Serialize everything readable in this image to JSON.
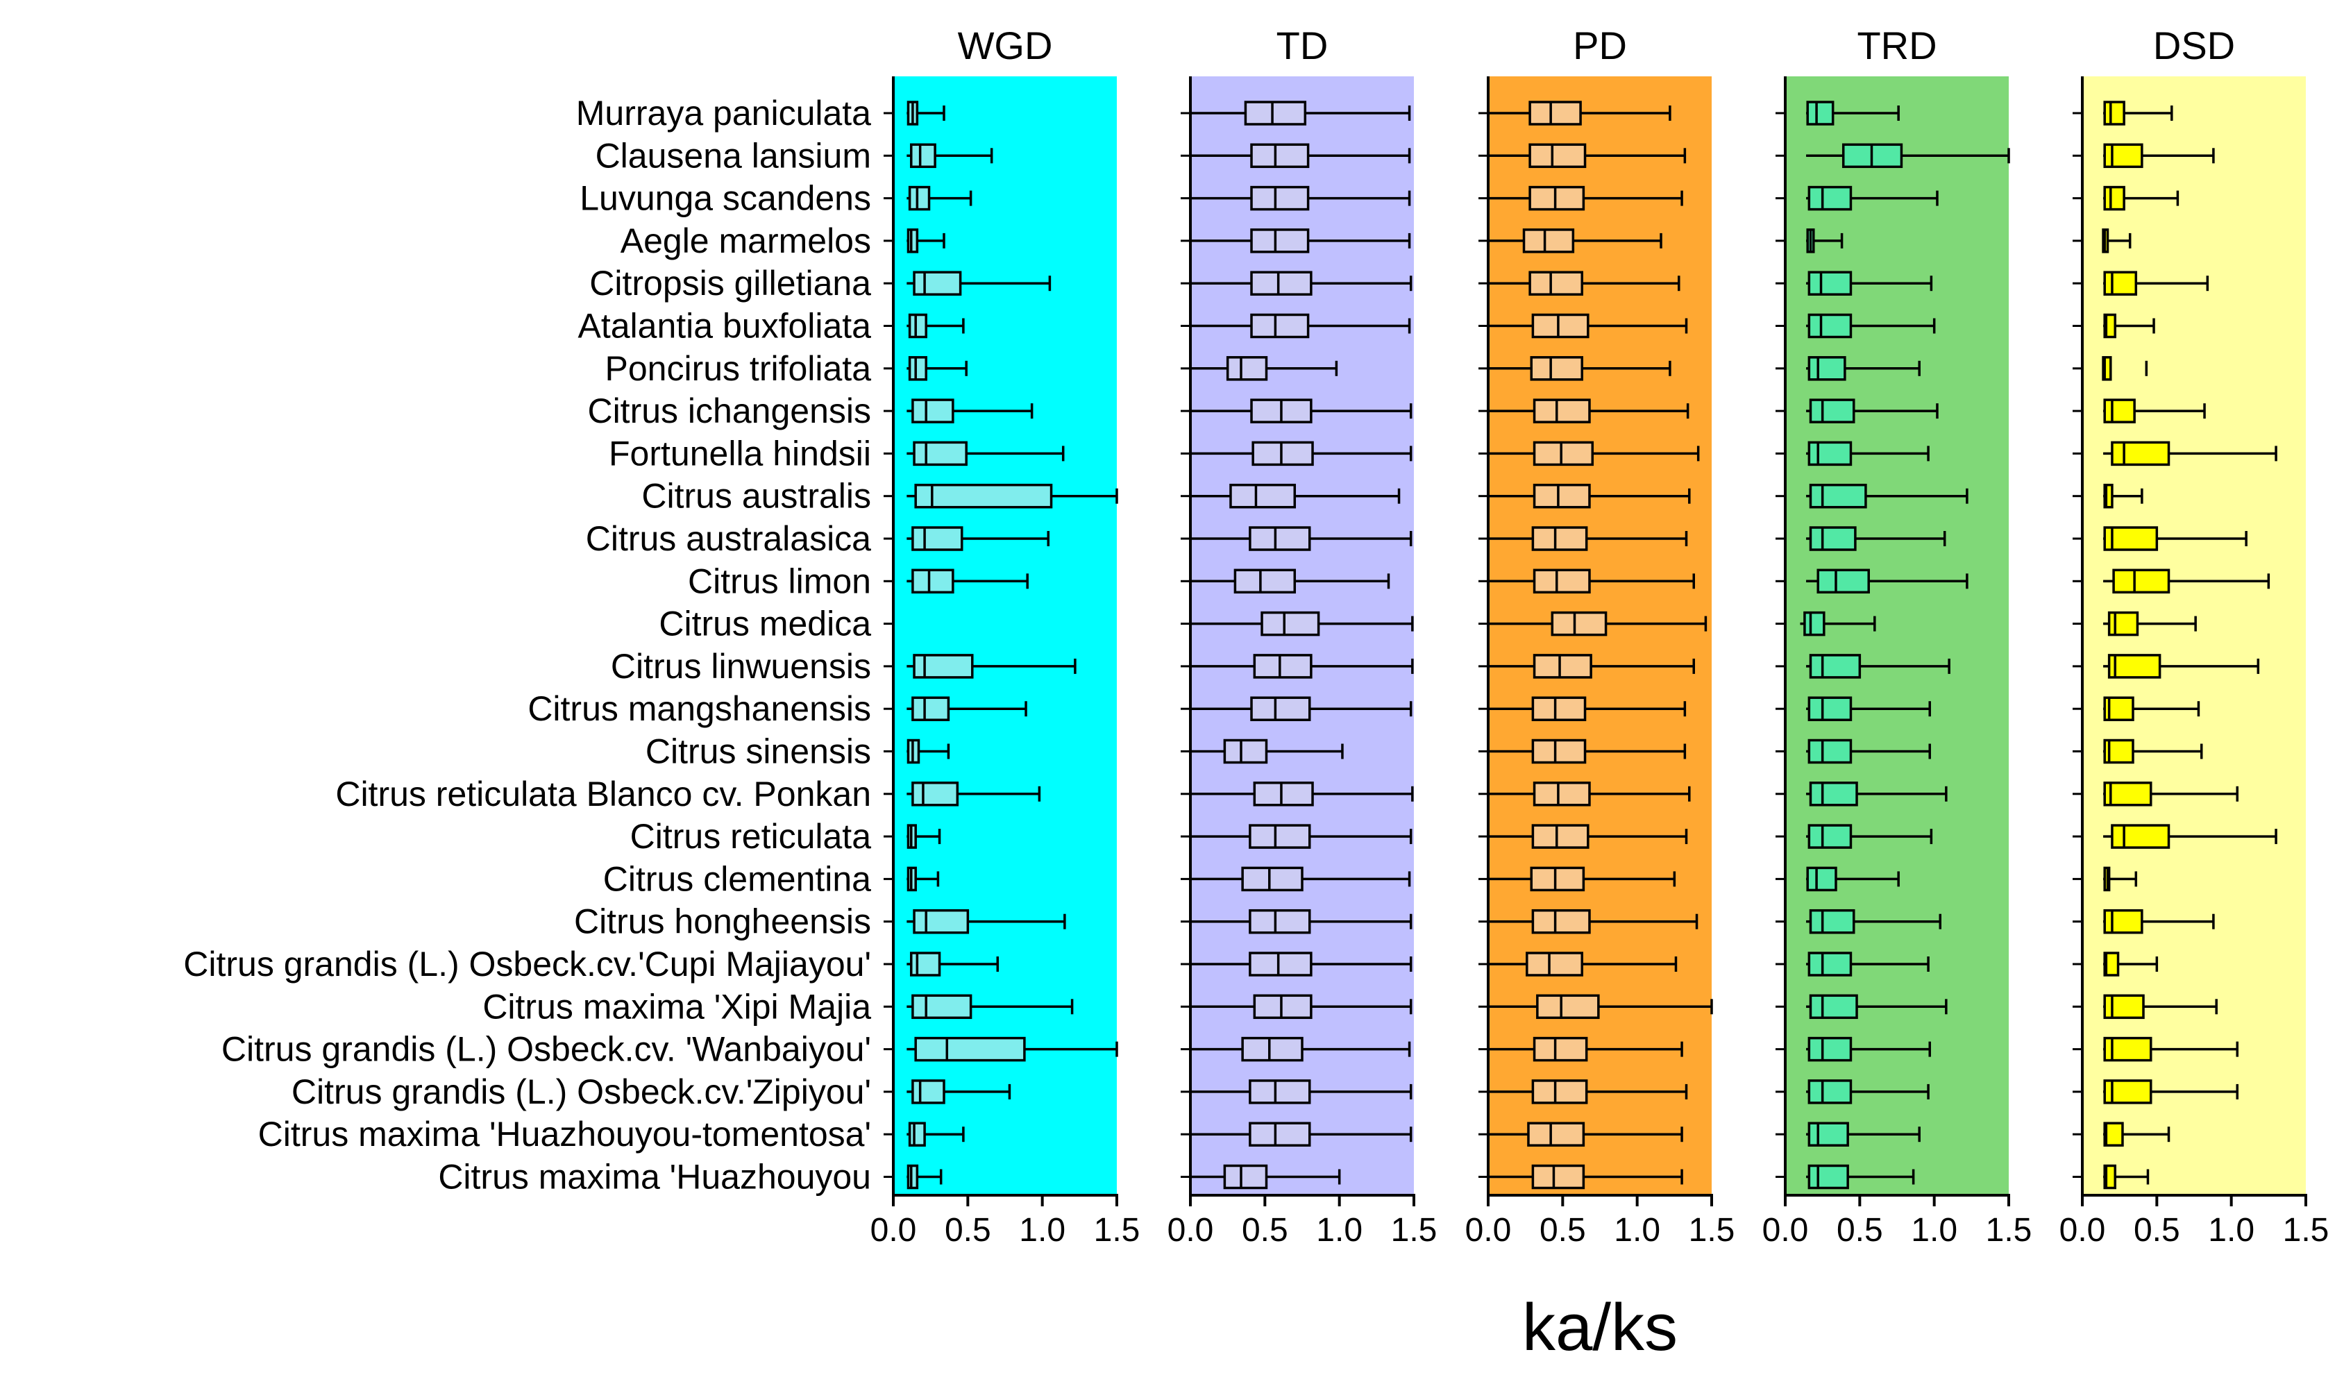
{
  "chart_data": {
    "type": "box",
    "xlabel": "ka/ks",
    "xlim": [
      0,
      1.5
    ],
    "xticks": [
      "0.0",
      "0.5",
      "1.0",
      "1.5"
    ],
    "categories": [
      "Murraya paniculata",
      "Clausena lansium",
      "Luvunga scandens",
      "Aegle marmelos",
      "Citropsis gilletiana",
      "Atalantia buxfoliata",
      "Poncirus trifoliata",
      "Citrus ichangensis",
      "Fortunella hindsii",
      "Citrus australis",
      "Citrus australasica",
      "Citrus limon",
      "Citrus medica",
      "Citrus linwuensis",
      "Citrus mangshanensis",
      "Citrus sinensis",
      "Citrus reticulata Blanco cv. Ponkan",
      "Citrus reticulata",
      "Citrus clementina",
      "Citrus hongheensis",
      "Citrus grandis (L.) Osbeck.cv.'Cupi Majiayou'",
      "Citrus maxima 'Xipi Majia",
      "Citrus grandis (L.) Osbeck.cv. 'Wanbaiyou'",
      "Citrus grandis (L.) Osbeck.cv.'Zipiyou'",
      "Citrus maxima 'Huazhouyou-tomentosa'",
      "Citrus maxima 'Huazhouyou"
    ],
    "panels": [
      {
        "name": "WGD",
        "background": "#00ffff",
        "box_fill": "#80eded",
        "boxes": [
          [
            0.09,
            0.1,
            0.13,
            0.16,
            0.34
          ],
          [
            0.09,
            0.12,
            0.18,
            0.28,
            0.66
          ],
          [
            0.09,
            0.11,
            0.16,
            0.24,
            0.52
          ],
          [
            0.09,
            0.1,
            0.12,
            0.16,
            0.34
          ],
          [
            0.09,
            0.14,
            0.21,
            0.45,
            1.05
          ],
          [
            0.09,
            0.11,
            0.15,
            0.22,
            0.47
          ],
          [
            0.09,
            0.11,
            0.15,
            0.22,
            0.49
          ],
          [
            0.09,
            0.13,
            0.22,
            0.4,
            0.93
          ],
          [
            0.09,
            0.14,
            0.22,
            0.49,
            1.14
          ],
          [
            0.09,
            0.15,
            0.26,
            1.06,
            1.5
          ],
          [
            0.09,
            0.13,
            0.21,
            0.46,
            1.04
          ],
          [
            0.09,
            0.13,
            0.24,
            0.4,
            0.9
          ],
          null,
          [
            0.09,
            0.14,
            0.21,
            0.53,
            1.22
          ],
          [
            0.09,
            0.13,
            0.21,
            0.37,
            0.89
          ],
          [
            0.09,
            0.1,
            0.13,
            0.17,
            0.37
          ],
          [
            0.09,
            0.13,
            0.2,
            0.43,
            0.98
          ],
          [
            0.09,
            0.1,
            0.12,
            0.15,
            0.31
          ],
          [
            0.09,
            0.1,
            0.12,
            0.15,
            0.3
          ],
          [
            0.09,
            0.14,
            0.22,
            0.5,
            1.15
          ],
          [
            0.09,
            0.12,
            0.16,
            0.31,
            0.7
          ],
          [
            0.09,
            0.13,
            0.22,
            0.52,
            1.2
          ],
          [
            0.09,
            0.15,
            0.36,
            0.88,
            1.5
          ],
          [
            0.09,
            0.13,
            0.18,
            0.34,
            0.78
          ],
          [
            0.09,
            0.11,
            0.14,
            0.21,
            0.47
          ],
          [
            0.09,
            0.1,
            0.12,
            0.16,
            0.32
          ]
        ]
      },
      {
        "name": "TD",
        "background": "#c0c0ff",
        "box_fill": "#ccccf4",
        "boxes": [
          [
            0.0,
            0.37,
            0.55,
            0.77,
            1.47
          ],
          [
            0.0,
            0.41,
            0.57,
            0.79,
            1.47
          ],
          [
            0.0,
            0.41,
            0.57,
            0.79,
            1.47
          ],
          [
            0.0,
            0.41,
            0.57,
            0.79,
            1.47
          ],
          [
            0.0,
            0.41,
            0.59,
            0.81,
            1.48
          ],
          [
            0.0,
            0.41,
            0.57,
            0.79,
            1.47
          ],
          [
            0.0,
            0.25,
            0.34,
            0.51,
            0.98
          ],
          [
            0.0,
            0.41,
            0.61,
            0.81,
            1.48
          ],
          [
            0.0,
            0.42,
            0.61,
            0.82,
            1.48
          ],
          [
            0.0,
            0.27,
            0.44,
            0.7,
            1.4
          ],
          [
            0.0,
            0.4,
            0.57,
            0.8,
            1.48
          ],
          [
            0.0,
            0.3,
            0.47,
            0.7,
            1.33
          ],
          [
            0.0,
            0.48,
            0.63,
            0.86,
            1.49
          ],
          [
            0.0,
            0.43,
            0.6,
            0.81,
            1.49
          ],
          [
            0.0,
            0.41,
            0.57,
            0.8,
            1.48
          ],
          [
            0.0,
            0.23,
            0.34,
            0.51,
            1.02
          ],
          [
            0.0,
            0.43,
            0.61,
            0.82,
            1.49
          ],
          [
            0.0,
            0.4,
            0.57,
            0.8,
            1.48
          ],
          [
            0.0,
            0.35,
            0.53,
            0.75,
            1.47
          ],
          [
            0.0,
            0.4,
            0.57,
            0.8,
            1.48
          ],
          [
            0.0,
            0.4,
            0.59,
            0.81,
            1.48
          ],
          [
            0.0,
            0.43,
            0.61,
            0.81,
            1.48
          ],
          [
            0.0,
            0.35,
            0.53,
            0.75,
            1.47
          ],
          [
            0.0,
            0.4,
            0.57,
            0.8,
            1.48
          ],
          [
            0.0,
            0.4,
            0.57,
            0.8,
            1.48
          ],
          [
            0.0,
            0.23,
            0.34,
            0.51,
            1.0
          ]
        ]
      },
      {
        "name": "PD",
        "background": "#ffa832",
        "box_fill": "#f9c88e",
        "boxes": [
          [
            0.0,
            0.28,
            0.42,
            0.62,
            1.22
          ],
          [
            0.0,
            0.28,
            0.43,
            0.65,
            1.32
          ],
          [
            0.0,
            0.28,
            0.45,
            0.64,
            1.3
          ],
          [
            0.0,
            0.24,
            0.38,
            0.57,
            1.16
          ],
          [
            0.0,
            0.28,
            0.42,
            0.63,
            1.28
          ],
          [
            0.0,
            0.3,
            0.47,
            0.67,
            1.33
          ],
          [
            0.0,
            0.29,
            0.42,
            0.63,
            1.22
          ],
          [
            0.0,
            0.31,
            0.46,
            0.68,
            1.34
          ],
          [
            0.0,
            0.31,
            0.49,
            0.7,
            1.41
          ],
          [
            0.0,
            0.31,
            0.47,
            0.68,
            1.35
          ],
          [
            0.0,
            0.3,
            0.45,
            0.66,
            1.33
          ],
          [
            0.0,
            0.31,
            0.46,
            0.68,
            1.38
          ],
          [
            0.0,
            0.43,
            0.58,
            0.79,
            1.46
          ],
          [
            0.0,
            0.31,
            0.48,
            0.69,
            1.38
          ],
          [
            0.0,
            0.3,
            0.45,
            0.65,
            1.32
          ],
          [
            0.0,
            0.3,
            0.45,
            0.65,
            1.32
          ],
          [
            0.0,
            0.31,
            0.47,
            0.68,
            1.35
          ],
          [
            0.0,
            0.3,
            0.46,
            0.67,
            1.33
          ],
          [
            0.0,
            0.29,
            0.45,
            0.64,
            1.25
          ],
          [
            0.0,
            0.3,
            0.45,
            0.68,
            1.4
          ],
          [
            0.0,
            0.26,
            0.41,
            0.63,
            1.26
          ],
          [
            0.0,
            0.33,
            0.49,
            0.74,
            1.5
          ],
          [
            0.0,
            0.31,
            0.45,
            0.66,
            1.3
          ],
          [
            0.0,
            0.3,
            0.45,
            0.66,
            1.33
          ],
          [
            0.0,
            0.27,
            0.42,
            0.64,
            1.3
          ],
          [
            0.0,
            0.3,
            0.44,
            0.64,
            1.3
          ]
        ]
      },
      {
        "name": "TRD",
        "background": "#80d878",
        "box_fill": "#52e8a5",
        "boxes": [
          [
            0.14,
            0.15,
            0.21,
            0.32,
            0.76
          ],
          [
            0.14,
            0.39,
            0.58,
            0.78,
            1.5
          ],
          [
            0.14,
            0.16,
            0.25,
            0.44,
            1.02
          ],
          [
            0.14,
            0.15,
            0.17,
            0.19,
            0.38
          ],
          [
            0.14,
            0.16,
            0.24,
            0.44,
            0.98
          ],
          [
            0.14,
            0.16,
            0.24,
            0.44,
            1.0
          ],
          [
            0.14,
            0.16,
            0.22,
            0.4,
            0.9
          ],
          [
            0.14,
            0.17,
            0.25,
            0.46,
            1.02
          ],
          [
            0.14,
            0.16,
            0.22,
            0.44,
            0.96
          ],
          [
            0.14,
            0.17,
            0.25,
            0.54,
            1.22
          ],
          [
            0.14,
            0.17,
            0.25,
            0.47,
            1.07
          ],
          [
            0.14,
            0.22,
            0.34,
            0.56,
            1.22
          ],
          [
            0.1,
            0.13,
            0.17,
            0.26,
            0.6
          ],
          [
            0.14,
            0.17,
            0.25,
            0.5,
            1.1
          ],
          [
            0.14,
            0.16,
            0.25,
            0.44,
            0.97
          ],
          [
            0.14,
            0.16,
            0.25,
            0.44,
            0.97
          ],
          [
            0.14,
            0.17,
            0.25,
            0.48,
            1.08
          ],
          [
            0.14,
            0.16,
            0.25,
            0.44,
            0.98
          ],
          [
            0.14,
            0.15,
            0.21,
            0.34,
            0.76
          ],
          [
            0.14,
            0.17,
            0.25,
            0.46,
            1.04
          ],
          [
            0.14,
            0.16,
            0.25,
            0.44,
            0.96
          ],
          [
            0.14,
            0.17,
            0.25,
            0.48,
            1.08
          ],
          [
            0.14,
            0.16,
            0.25,
            0.44,
            0.97
          ],
          [
            0.14,
            0.16,
            0.25,
            0.44,
            0.96
          ],
          [
            0.14,
            0.16,
            0.22,
            0.42,
            0.9
          ],
          [
            0.14,
            0.16,
            0.22,
            0.42,
            0.86
          ]
        ]
      },
      {
        "name": "DSD",
        "background": "#ffffa0",
        "box_fill": "#ffff00",
        "boxes": [
          [
            0.14,
            0.15,
            0.19,
            0.28,
            0.6
          ],
          [
            0.14,
            0.15,
            0.2,
            0.4,
            0.88
          ],
          [
            0.14,
            0.15,
            0.19,
            0.28,
            0.64
          ],
          [
            0.14,
            0.14,
            0.15,
            0.17,
            0.32
          ],
          [
            0.14,
            0.15,
            0.2,
            0.36,
            0.84
          ],
          [
            0.14,
            0.15,
            0.16,
            0.22,
            0.48
          ],
          [
            0.14,
            0.14,
            0.15,
            0.19,
            null
          ],
          [
            0.14,
            0.15,
            0.2,
            0.35,
            0.82
          ],
          [
            0.14,
            0.2,
            0.28,
            0.58,
            1.3
          ],
          [
            0.14,
            0.15,
            0.16,
            0.2,
            0.4
          ],
          [
            0.14,
            0.15,
            0.2,
            0.5,
            1.1
          ],
          [
            0.14,
            0.21,
            0.35,
            0.58,
            1.25
          ],
          [
            0.14,
            0.18,
            0.22,
            0.37,
            0.76
          ],
          [
            0.14,
            0.18,
            0.22,
            0.52,
            1.18
          ],
          [
            0.14,
            0.15,
            0.18,
            0.34,
            0.78
          ],
          [
            0.14,
            0.15,
            0.18,
            0.34,
            0.8
          ],
          [
            0.14,
            0.15,
            0.19,
            0.46,
            1.04
          ],
          [
            0.14,
            0.2,
            0.28,
            0.58,
            1.3
          ],
          [
            0.14,
            0.15,
            0.17,
            0.18,
            0.36
          ],
          [
            0.14,
            0.15,
            0.2,
            0.4,
            0.88
          ],
          [
            0.14,
            0.15,
            0.16,
            0.24,
            0.5
          ],
          [
            0.14,
            0.15,
            0.2,
            0.41,
            0.9
          ],
          [
            0.14,
            0.15,
            0.2,
            0.46,
            1.04
          ],
          [
            0.14,
            0.15,
            0.2,
            0.46,
            1.04
          ],
          [
            0.14,
            0.15,
            0.16,
            0.27,
            0.58
          ],
          [
            0.14,
            0.15,
            0.16,
            0.22,
            0.44
          ]
        ]
      }
    ]
  }
}
